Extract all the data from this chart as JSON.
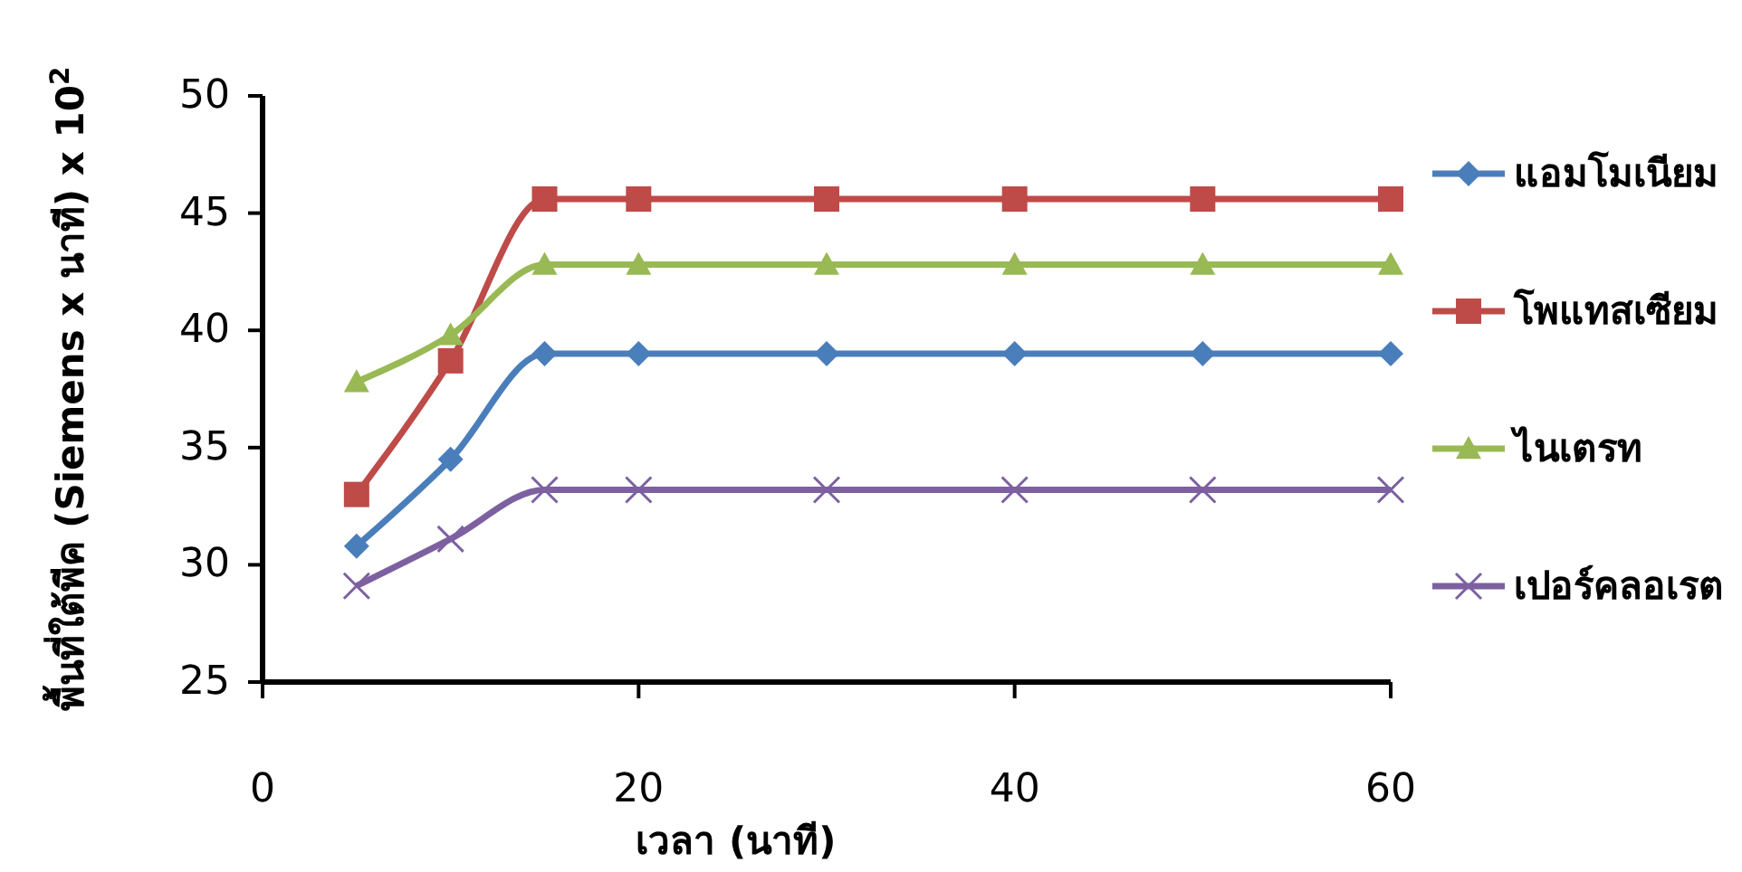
{
  "chart_data": {
    "type": "line",
    "xlabel": "เวลา (นาที)",
    "ylabel": "พื้นที่ใต้พีค (Siemens x นาที) x 10$^{2}$",
    "x": [
      5,
      10,
      15,
      20,
      30,
      40,
      50,
      60
    ],
    "series": [
      {
        "name": "แอมโมเนียม",
        "color": "#4a7ebb",
        "marker": "diamond",
        "values": [
          30.8,
          34.5,
          39.0,
          39.0,
          39.0,
          39.0,
          39.0,
          39.0
        ]
      },
      {
        "name": "โพแทสเซียม",
        "color": "#be4b48",
        "marker": "square",
        "values": [
          33.0,
          38.7,
          45.6,
          45.6,
          45.6,
          45.6,
          45.6,
          45.6
        ]
      },
      {
        "name": "ไนเตรท",
        "color": "#98b954",
        "marker": "triangle",
        "values": [
          37.8,
          39.8,
          42.8,
          42.8,
          42.8,
          42.8,
          42.8,
          42.8
        ]
      },
      {
        "name": "เปอร์คลอเรต",
        "color": "#7d60a0",
        "marker": "cross",
        "values": [
          29.1,
          31.1,
          33.2,
          33.2,
          33.2,
          33.2,
          33.2,
          33.2
        ]
      }
    ],
    "xlim": [
      0,
      60
    ],
    "xticks": [
      0,
      20,
      40,
      60
    ],
    "ylim": [
      25,
      50
    ],
    "yticks": [
      25,
      30,
      35,
      40,
      45,
      50
    ],
    "grid": false,
    "legend": "right",
    "line_style": "solid"
  }
}
